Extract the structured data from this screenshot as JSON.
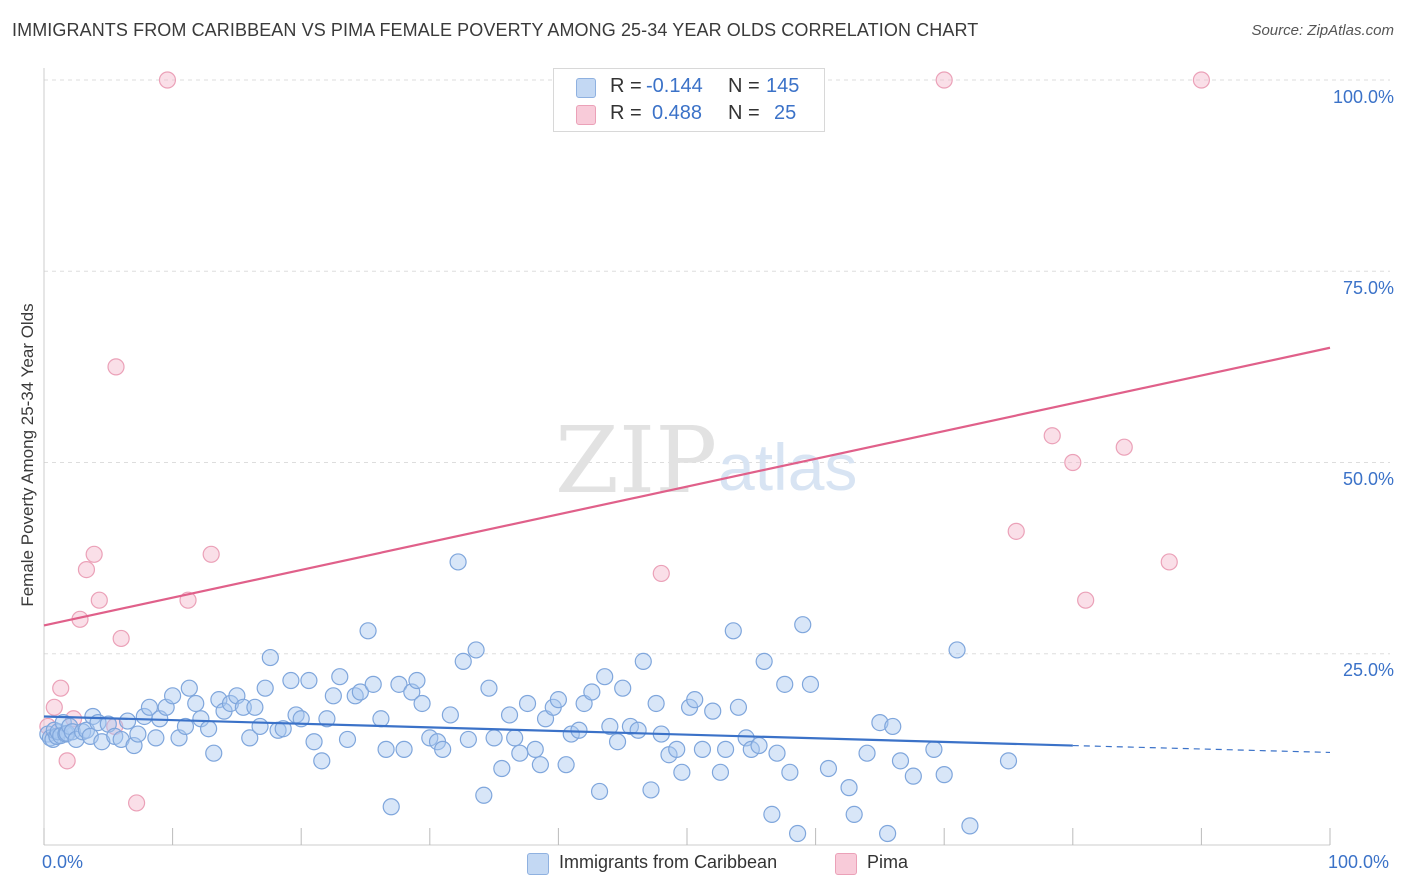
{
  "title": "IMMIGRANTS FROM CARIBBEAN VS PIMA FEMALE POVERTY AMONG 25-34 YEAR OLDS CORRELATION CHART",
  "source": "Source: ZipAtlas.com",
  "watermark": {
    "zip": "ZIP",
    "atlas": "atlas"
  },
  "legend_top": [
    {
      "r_label": "R =",
      "r_value": "-0.144",
      "n_label": "N =",
      "n_value": "145",
      "color": "#a8c8f0"
    },
    {
      "r_label": "R =",
      "r_value": "0.488",
      "n_label": "N =",
      "n_value": "25",
      "color": "#f5b8cb"
    }
  ],
  "legend_bottom": [
    {
      "label": "Immigrants from Caribbean",
      "color": "#a8c8f0"
    },
    {
      "label": "Pima",
      "color": "#f5b8cb"
    }
  ],
  "colors": {
    "blue": "#3b72c8",
    "blue_fill": "#a8c8f0",
    "pink": "#e0608a",
    "pink_fill": "#f5b8cb",
    "grid": "#dddddd"
  },
  "chart_data": {
    "type": "scatter",
    "title": "IMMIGRANTS FROM CARIBBEAN VS PIMA FEMALE POVERTY AMONG 25-34 YEAR OLDS CORRELATION CHART",
    "xlabel": "",
    "ylabel": "Female Poverty Among 25-34 Year Olds",
    "xlim": [
      0,
      100
    ],
    "ylim": [
      0,
      100
    ],
    "x_tick_labels": [
      "0.0%",
      "100.0%"
    ],
    "y_tick_labels": [
      "25.0%",
      "50.0%",
      "75.0%",
      "100.0%"
    ],
    "y_ticks": [
      25,
      50,
      75,
      100
    ],
    "grid": true,
    "legend_position": "top-center",
    "series": [
      {
        "name": "Immigrants from Caribbean",
        "R": -0.144,
        "N": 145,
        "trend": {
          "x0": 0,
          "y0": 16.8,
          "x1": 80,
          "y1": 13.0,
          "dashed_to": 100,
          "dashed_y": 12.1
        },
        "points": [
          [
            0.3,
            14.5
          ],
          [
            0.5,
            14.0
          ],
          [
            0.7,
            13.8
          ],
          [
            0.8,
            15.0
          ],
          [
            1.0,
            14.2
          ],
          [
            1.1,
            14.8
          ],
          [
            1.3,
            14.3
          ],
          [
            1.5,
            16.0
          ],
          [
            1.7,
            14.5
          ],
          [
            1.8,
            14.6
          ],
          [
            2.0,
            15.5
          ],
          [
            2.2,
            14.8
          ],
          [
            2.5,
            13.8
          ],
          [
            3.0,
            14.8
          ],
          [
            3.3,
            15.0
          ],
          [
            3.6,
            14.2
          ],
          [
            3.8,
            16.8
          ],
          [
            4.2,
            16.0
          ],
          [
            4.5,
            13.5
          ],
          [
            5.0,
            15.8
          ],
          [
            5.5,
            14.2
          ],
          [
            6.0,
            13.8
          ],
          [
            6.5,
            16.2
          ],
          [
            7.0,
            13.0
          ],
          [
            7.3,
            14.5
          ],
          [
            7.8,
            16.8
          ],
          [
            8.2,
            18.0
          ],
          [
            8.7,
            14.0
          ],
          [
            9.0,
            16.5
          ],
          [
            9.5,
            18.0
          ],
          [
            10.0,
            19.5
          ],
          [
            10.5,
            14.0
          ],
          [
            11.0,
            15.5
          ],
          [
            11.3,
            20.5
          ],
          [
            11.8,
            18.5
          ],
          [
            12.2,
            16.5
          ],
          [
            12.8,
            15.2
          ],
          [
            13.2,
            12.0
          ],
          [
            13.6,
            19.0
          ],
          [
            14.0,
            17.5
          ],
          [
            14.5,
            18.5
          ],
          [
            15.0,
            19.5
          ],
          [
            15.5,
            18.0
          ],
          [
            16.0,
            14.0
          ],
          [
            16.4,
            18.0
          ],
          [
            16.8,
            15.5
          ],
          [
            17.2,
            20.5
          ],
          [
            17.6,
            24.5
          ],
          [
            18.2,
            15.0
          ],
          [
            18.6,
            15.2
          ],
          [
            19.2,
            21.5
          ],
          [
            19.6,
            17.0
          ],
          [
            20.0,
            16.5
          ],
          [
            20.6,
            21.5
          ],
          [
            21.0,
            13.5
          ],
          [
            21.6,
            11.0
          ],
          [
            22.0,
            16.5
          ],
          [
            22.5,
            19.5
          ],
          [
            23.0,
            22.0
          ],
          [
            23.6,
            13.8
          ],
          [
            24.2,
            19.5
          ],
          [
            24.6,
            20.0
          ],
          [
            25.2,
            28.0
          ],
          [
            25.6,
            21.0
          ],
          [
            26.2,
            16.5
          ],
          [
            26.6,
            12.5
          ],
          [
            27.0,
            5.0
          ],
          [
            27.6,
            21.0
          ],
          [
            28.0,
            12.5
          ],
          [
            28.6,
            20.0
          ],
          [
            29.0,
            21.5
          ],
          [
            29.4,
            18.5
          ],
          [
            30.0,
            14.0
          ],
          [
            30.6,
            13.5
          ],
          [
            31.0,
            12.5
          ],
          [
            31.6,
            17.0
          ],
          [
            32.2,
            37.0
          ],
          [
            32.6,
            24.0
          ],
          [
            33.0,
            13.8
          ],
          [
            33.6,
            25.5
          ],
          [
            34.2,
            6.5
          ],
          [
            34.6,
            20.5
          ],
          [
            35.0,
            14.0
          ],
          [
            35.6,
            10.0
          ],
          [
            36.2,
            17.0
          ],
          [
            36.6,
            14.0
          ],
          [
            37.0,
            12.0
          ],
          [
            37.6,
            18.5
          ],
          [
            38.2,
            12.5
          ],
          [
            38.6,
            10.5
          ],
          [
            39.0,
            16.5
          ],
          [
            39.6,
            18.0
          ],
          [
            40.0,
            19.0
          ],
          [
            40.6,
            10.5
          ],
          [
            41.0,
            14.5
          ],
          [
            41.6,
            15.0
          ],
          [
            42.0,
            18.5
          ],
          [
            42.6,
            20.0
          ],
          [
            43.2,
            7.0
          ],
          [
            43.6,
            22.0
          ],
          [
            44.0,
            15.5
          ],
          [
            44.6,
            13.5
          ],
          [
            45.0,
            20.5
          ],
          [
            45.6,
            15.5
          ],
          [
            46.2,
            15.0
          ],
          [
            46.6,
            24.0
          ],
          [
            47.2,
            7.2
          ],
          [
            47.6,
            18.5
          ],
          [
            48.0,
            14.5
          ],
          [
            48.6,
            11.8
          ],
          [
            49.2,
            12.5
          ],
          [
            49.6,
            9.5
          ],
          [
            50.2,
            18.0
          ],
          [
            50.6,
            19.0
          ],
          [
            51.2,
            12.5
          ],
          [
            52.0,
            17.5
          ],
          [
            52.6,
            9.5
          ],
          [
            53.0,
            12.5
          ],
          [
            53.6,
            28.0
          ],
          [
            54.0,
            18.0
          ],
          [
            54.6,
            14.0
          ],
          [
            55.0,
            12.5
          ],
          [
            55.6,
            13.0
          ],
          [
            56.0,
            24.0
          ],
          [
            56.6,
            4.0
          ],
          [
            57.0,
            12.0
          ],
          [
            57.6,
            21.0
          ],
          [
            58.0,
            9.5
          ],
          [
            58.6,
            1.5
          ],
          [
            59.0,
            28.8
          ],
          [
            59.6,
            21.0
          ],
          [
            61.0,
            10.0
          ],
          [
            62.6,
            7.5
          ],
          [
            63.0,
            4.0
          ],
          [
            64.0,
            12.0
          ],
          [
            65.0,
            16.0
          ],
          [
            65.6,
            1.5
          ],
          [
            66.0,
            15.5
          ],
          [
            66.6,
            11.0
          ],
          [
            67.6,
            9.0
          ],
          [
            69.2,
            12.5
          ],
          [
            70.0,
            9.2
          ],
          [
            71.0,
            25.5
          ],
          [
            72.0,
            2.5
          ],
          [
            75.0,
            11.0
          ]
        ]
      },
      {
        "name": "Pima",
        "R": 0.488,
        "N": 25,
        "trend": {
          "x0": 0,
          "y0": 28.7,
          "x1": 100,
          "y1": 65.0
        },
        "points": [
          [
            0.3,
            15.5
          ],
          [
            0.8,
            18.0
          ],
          [
            1.3,
            20.5
          ],
          [
            1.8,
            11.0
          ],
          [
            2.3,
            16.5
          ],
          [
            2.8,
            29.5
          ],
          [
            3.3,
            36.0
          ],
          [
            3.9,
            38.0
          ],
          [
            4.3,
            32.0
          ],
          [
            5.5,
            15.5
          ],
          [
            5.6,
            62.5
          ],
          [
            6.0,
            27.0
          ],
          [
            7.2,
            5.5
          ],
          [
            9.6,
            100
          ],
          [
            11.2,
            32.0
          ],
          [
            13.0,
            38.0
          ],
          [
            48.0,
            35.5
          ],
          [
            70.0,
            100
          ],
          [
            75.6,
            41.0
          ],
          [
            78.4,
            53.5
          ],
          [
            80.0,
            50.0
          ],
          [
            81.0,
            32.0
          ],
          [
            84.0,
            52.0
          ],
          [
            87.5,
            37.0
          ],
          [
            90.0,
            100
          ]
        ]
      }
    ]
  }
}
